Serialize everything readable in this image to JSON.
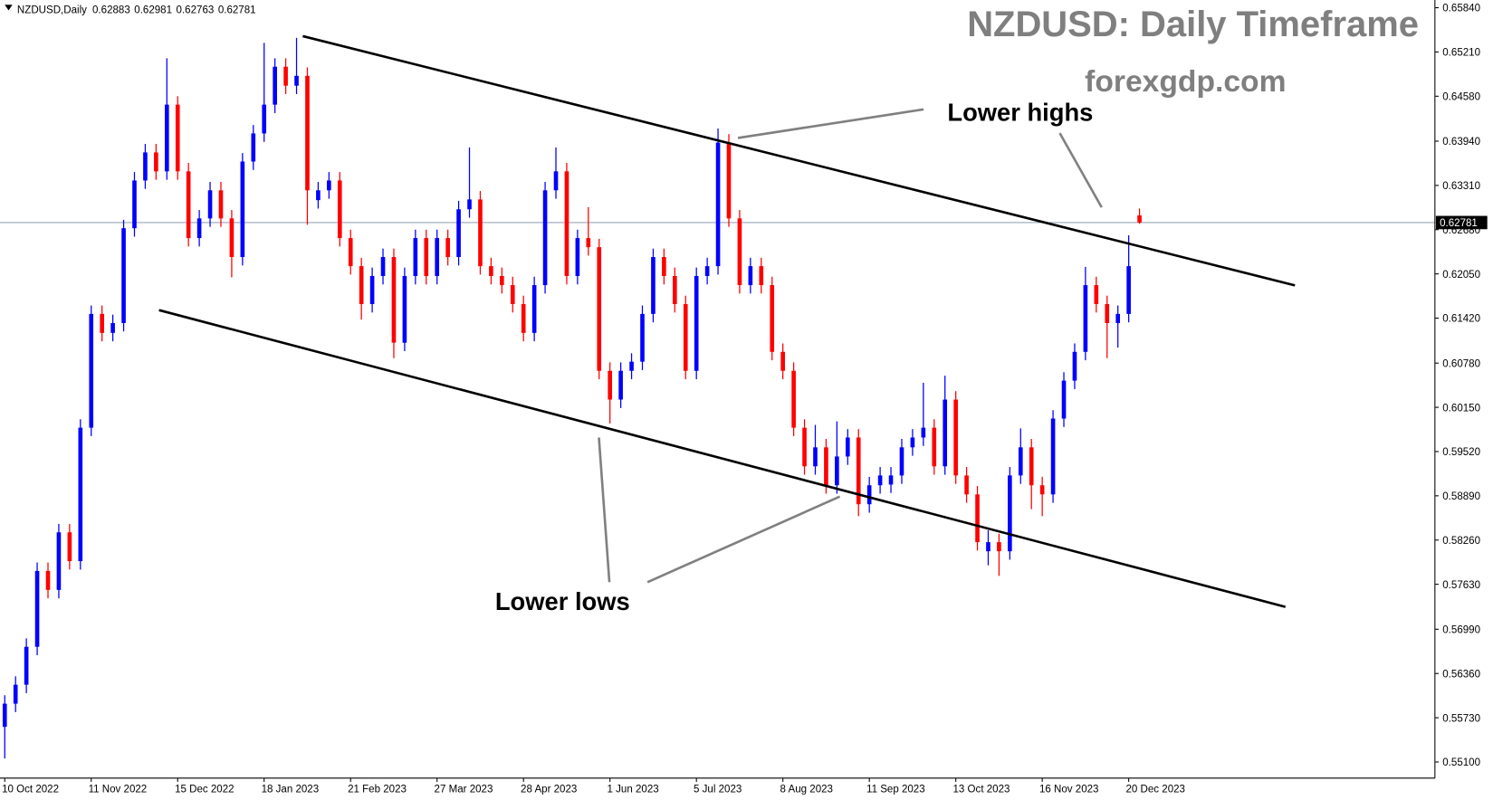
{
  "chart_data": {
    "type": "candlestick",
    "symbol": "NZDUSD,Daily",
    "title": "NZDUSD: Daily Timeframe",
    "subtitle": "forexgdp.com",
    "annotations": [
      "Lower highs",
      "Lower lows"
    ],
    "up_color": "#0000ff",
    "down_color": "#ff0000",
    "categories": [
      "10 Oct 2022",
      null,
      null,
      null,
      null,
      null,
      null,
      null,
      "11 Nov 2022",
      null,
      null,
      null,
      null,
      null,
      null,
      null,
      "15 Dec 2022",
      null,
      null,
      null,
      null,
      null,
      null,
      null,
      "18 Jan 2023",
      null,
      null,
      null,
      null,
      null,
      null,
      null,
      "21 Feb 2023",
      null,
      null,
      null,
      null,
      null,
      null,
      null,
      "27 Mar 2023",
      null,
      null,
      null,
      null,
      null,
      null,
      null,
      "28 Apr 2023",
      null,
      null,
      null,
      null,
      null,
      null,
      null,
      "1 Jun 2023",
      null,
      null,
      null,
      null,
      null,
      null,
      null,
      "5 Jul 2023",
      null,
      null,
      null,
      null,
      null,
      null,
      null,
      "8 Aug 2023",
      null,
      null,
      null,
      null,
      null,
      null,
      null,
      "11 Sep 2023",
      null,
      null,
      null,
      null,
      null,
      null,
      null,
      "13 Oct 2023",
      null,
      null,
      null,
      null,
      null,
      null,
      null,
      "16 Nov 2023",
      null,
      null,
      null,
      null,
      null,
      null,
      null,
      "20 Dec 2023",
      null
    ],
    "open": [
      0.556,
      0.5593,
      0.562,
      0.5674,
      0.5782,
      0.5755,
      0.5837,
      0.5796,
      0.5986,
      0.6148,
      0.6121,
      0.6135,
      0.627,
      0.6338,
      0.6378,
      0.6351,
      0.6446,
      0.6351,
      0.6256,
      0.6284,
      0.6324,
      0.6284,
      0.6229,
      0.6365,
      0.6405,
      0.6446,
      0.65,
      0.6473,
      0.6487,
      0.631,
      0.6324,
      0.6338,
      0.6256,
      0.6216,
      0.6162,
      0.6202,
      0.6229,
      0.6107,
      0.6202,
      0.6256,
      0.6202,
      0.6256,
      0.6229,
      0.6297,
      0.6311,
      0.6216,
      0.6202,
      0.6189,
      0.6162,
      0.6121,
      0.6189,
      0.6324,
      0.6351,
      0.6202,
      0.6256,
      0.6243,
      0.6067,
      0.6026,
      0.6067,
      0.608,
      0.6148,
      0.6229,
      0.6202,
      0.6162,
      0.6067,
      0.6202,
      0.6216,
      0.6392,
      0.6284,
      0.6189,
      0.6216,
      0.6189,
      0.6094,
      0.6067,
      0.5986,
      0.5931,
      0.5958,
      0.5904,
      0.5945,
      0.5972,
      0.5877,
      0.5904,
      0.5905,
      0.5918,
      0.5958,
      0.5972,
      0.5986,
      0.5931,
      0.6026,
      0.5918,
      0.5891,
      0.581,
      0.5823,
      0.581,
      0.5918,
      0.5958,
      0.5904,
      0.5891,
      0.5999,
      0.6053,
      0.6094,
      0.6189,
      0.6162,
      0.6135,
      0.6148,
      0.62883
    ],
    "high": [
      0.5605,
      0.5632,
      0.5686,
      0.5794,
      0.5794,
      0.5849,
      0.5849,
      0.5998,
      0.616,
      0.616,
      0.6147,
      0.6282,
      0.635,
      0.639,
      0.639,
      0.6512,
      0.6458,
      0.6363,
      0.6296,
      0.6336,
      0.6336,
      0.6296,
      0.6377,
      0.6417,
      0.6534,
      0.6512,
      0.6512,
      0.6541,
      0.6499,
      0.6336,
      0.635,
      0.635,
      0.6268,
      0.6228,
      0.6214,
      0.6241,
      0.6241,
      0.6214,
      0.6268,
      0.6268,
      0.6268,
      0.6268,
      0.6309,
      0.6385,
      0.6323,
      0.6228,
      0.6214,
      0.6201,
      0.6174,
      0.6201,
      0.6336,
      0.6385,
      0.6363,
      0.6268,
      0.63,
      0.6255,
      0.6079,
      0.6079,
      0.6092,
      0.616,
      0.6241,
      0.6241,
      0.6214,
      0.6174,
      0.6214,
      0.6228,
      0.6412,
      0.6404,
      0.6296,
      0.6228,
      0.6228,
      0.6201,
      0.6106,
      0.6079,
      0.5998,
      0.599,
      0.597,
      0.5995,
      0.5984,
      0.5984,
      0.5916,
      0.593,
      0.593,
      0.597,
      0.5984,
      0.605,
      0.5998,
      0.606,
      0.6038,
      0.593,
      0.5903,
      0.584,
      0.5835,
      0.593,
      0.5985,
      0.597,
      0.5916,
      0.6011,
      0.6065,
      0.6106,
      0.6215,
      0.6201,
      0.6174,
      0.616,
      0.626,
      0.62981
    ],
    "low": [
      0.5515,
      0.5581,
      0.5608,
      0.5662,
      0.5743,
      0.5743,
      0.5784,
      0.5784,
      0.5974,
      0.6109,
      0.6109,
      0.6123,
      0.6258,
      0.6326,
      0.6339,
      0.6339,
      0.6339,
      0.6244,
      0.6244,
      0.6272,
      0.6272,
      0.62,
      0.6217,
      0.6353,
      0.6393,
      0.6434,
      0.6461,
      0.6461,
      0.6275,
      0.6298,
      0.6312,
      0.6244,
      0.6204,
      0.614,
      0.615,
      0.619,
      0.6085,
      0.6095,
      0.619,
      0.619,
      0.619,
      0.6217,
      0.6217,
      0.6285,
      0.6204,
      0.619,
      0.6177,
      0.615,
      0.6109,
      0.6109,
      0.6177,
      0.6312,
      0.619,
      0.619,
      0.6231,
      0.6055,
      0.5992,
      0.6014,
      0.6055,
      0.6068,
      0.6136,
      0.619,
      0.615,
      0.6055,
      0.6055,
      0.619,
      0.6204,
      0.6272,
      0.6177,
      0.6177,
      0.6177,
      0.6082,
      0.6055,
      0.5974,
      0.5919,
      0.5919,
      0.5892,
      0.5892,
      0.5933,
      0.586,
      0.5865,
      0.5892,
      0.5893,
      0.5906,
      0.5946,
      0.596,
      0.5919,
      0.5919,
      0.5906,
      0.5879,
      0.5811,
      0.579,
      0.5775,
      0.5798,
      0.5906,
      0.587,
      0.586,
      0.5879,
      0.5987,
      0.6041,
      0.6082,
      0.615,
      0.6085,
      0.61,
      0.6136,
      0.62763
    ],
    "close": [
      0.5593,
      0.562,
      0.5674,
      0.5782,
      0.5755,
      0.5837,
      0.5796,
      0.5986,
      0.6148,
      0.6121,
      0.6135,
      0.627,
      0.6338,
      0.6378,
      0.6351,
      0.6446,
      0.6351,
      0.6256,
      0.6284,
      0.6324,
      0.6284,
      0.6229,
      0.6365,
      0.6405,
      0.6446,
      0.65,
      0.6473,
      0.6487,
      0.6324,
      0.6324,
      0.6338,
      0.6256,
      0.6216,
      0.6162,
      0.6202,
      0.6229,
      0.6107,
      0.6202,
      0.6256,
      0.6202,
      0.6256,
      0.6229,
      0.6297,
      0.6311,
      0.6216,
      0.6202,
      0.6189,
      0.6162,
      0.6121,
      0.6189,
      0.6324,
      0.6351,
      0.6202,
      0.6256,
      0.6243,
      0.6067,
      0.6026,
      0.6067,
      0.608,
      0.6148,
      0.6229,
      0.6202,
      0.6162,
      0.6067,
      0.6202,
      0.6216,
      0.6392,
      0.6284,
      0.6189,
      0.6216,
      0.6189,
      0.6094,
      0.6067,
      0.5986,
      0.5931,
      0.5958,
      0.5904,
      0.5945,
      0.5972,
      0.5877,
      0.5904,
      0.5918,
      0.5918,
      0.5958,
      0.5972,
      0.5986,
      0.5931,
      0.6026,
      0.5918,
      0.5891,
      0.5823,
      0.5823,
      0.581,
      0.5918,
      0.5958,
      0.5904,
      0.5891,
      0.5999,
      0.6053,
      0.6094,
      0.6189,
      0.6162,
      0.6135,
      0.6148,
      0.6216,
      0.62781
    ],
    "ylim": [
      0.5487,
      0.6595
    ],
    "yticks": [
      {
        "value": 0.6584,
        "label": "0.65840"
      },
      {
        "value": 0.6521,
        "label": "0.65210"
      },
      {
        "value": 0.6458,
        "label": "0.64580"
      },
      {
        "value": 0.6394,
        "label": "0.63940"
      },
      {
        "value": 0.6331,
        "label": "0.63310"
      },
      {
        "value": 0.6268,
        "label": "0.62680"
      },
      {
        "value": 0.6205,
        "label": "0.62050"
      },
      {
        "value": 0.6142,
        "label": "0.61420"
      },
      {
        "value": 0.6078,
        "label": "0.60780"
      },
      {
        "value": 0.6015,
        "label": "0.60150"
      },
      {
        "value": 0.5952,
        "label": "0.59520"
      },
      {
        "value": 0.5889,
        "label": "0.58890"
      },
      {
        "value": 0.5826,
        "label": "0.58260"
      },
      {
        "value": 0.5763,
        "label": "0.57630"
      },
      {
        "value": 0.5699,
        "label": "0.56990"
      },
      {
        "value": 0.5636,
        "label": "0.56360"
      },
      {
        "value": 0.5573,
        "label": "0.55730"
      },
      {
        "value": 0.551,
        "label": "0.55100"
      }
    ]
  }
}
